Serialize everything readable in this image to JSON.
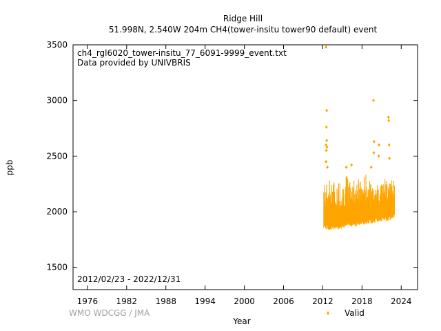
{
  "header": {
    "title_line1": "Ridge Hill",
    "title_line2": "51.998N, 2.540W 204m     CH4(tower-insitu tower90 default) event"
  },
  "annotations": {
    "filename": "ch4_rgl6020_tower-insitu_77_6091-9999_event.txt",
    "provider": "Data provided by UNIVBRIS",
    "date_range": "2012/02/23 - 2022/12/31"
  },
  "credit": "WMO WDCGG / JMA",
  "colors": {
    "series": "#ffa500",
    "axis": "#000000",
    "credit": "#a0a0a0"
  },
  "chart_data": {
    "type": "scatter",
    "xlabel": "Year",
    "ylabel": "ppb",
    "xlim": [
      1973.8,
      2026.5
    ],
    "ylim": [
      1300,
      3500
    ],
    "xticks": [
      1976,
      1982,
      1988,
      1994,
      2000,
      2006,
      2012,
      2018,
      2024
    ],
    "yticks": [
      1500,
      2000,
      2500,
      3000,
      3500
    ],
    "legend": "bottom-right",
    "grid": false,
    "series": [
      {
        "name": "Valid",
        "marker": "diamond",
        "band": {
          "x": [
            2012.15,
            2012.5,
            2013.0,
            2013.5,
            2014.0,
            2014.5,
            2015.0,
            2015.5,
            2016.0,
            2016.5,
            2017.0,
            2017.5,
            2018.0,
            2018.5,
            2019.0,
            2019.5,
            2020.0,
            2020.5,
            2021.0,
            2021.5,
            2022.0,
            2022.5,
            2022.99
          ],
          "low": [
            1850,
            1840,
            1830,
            1840,
            1830,
            1845,
            1850,
            1855,
            1860,
            1870,
            1865,
            1875,
            1880,
            1885,
            1890,
            1895,
            1900,
            1905,
            1910,
            1915,
            1920,
            1930,
            1940
          ],
          "high": [
            2280,
            2250,
            2300,
            2350,
            2200,
            2300,
            2250,
            2350,
            2300,
            2280,
            2330,
            2300,
            2280,
            2350,
            2300,
            2250,
            2320,
            2250,
            2280,
            2300,
            2320,
            2300,
            2320
          ]
        },
        "points": [
          {
            "x": 2012.5,
            "y": 3480
          },
          {
            "x": 2012.6,
            "y": 2910
          },
          {
            "x": 2012.55,
            "y": 2760
          },
          {
            "x": 2012.6,
            "y": 2640
          },
          {
            "x": 2012.5,
            "y": 2600
          },
          {
            "x": 2012.65,
            "y": 2580
          },
          {
            "x": 2012.55,
            "y": 2550
          },
          {
            "x": 2012.5,
            "y": 2450
          },
          {
            "x": 2012.7,
            "y": 2400
          },
          {
            "x": 2015.6,
            "y": 2400
          },
          {
            "x": 2016.4,
            "y": 2420
          },
          {
            "x": 2019.4,
            "y": 2400
          },
          {
            "x": 2019.75,
            "y": 3000
          },
          {
            "x": 2019.85,
            "y": 2630
          },
          {
            "x": 2019.8,
            "y": 2530
          },
          {
            "x": 2020.6,
            "y": 2600
          },
          {
            "x": 2020.55,
            "y": 2500
          },
          {
            "x": 2022.05,
            "y": 2850
          },
          {
            "x": 2022.1,
            "y": 2820
          },
          {
            "x": 2022.15,
            "y": 2600
          },
          {
            "x": 2022.2,
            "y": 2480
          }
        ]
      }
    ]
  }
}
